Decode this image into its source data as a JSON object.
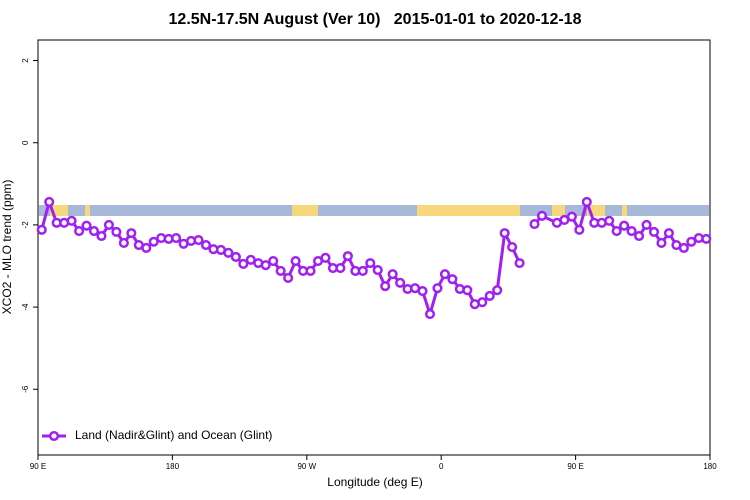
{
  "chart_data": {
    "type": "line",
    "title": "12.5N-17.5N August (Ver 10)   2015-01-01 to 2020-12-18",
    "xlabel": "Longitude (deg E)",
    "ylabel": "XCO2 - MLO trend (ppm)",
    "xlim": [
      90,
      540
    ],
    "xticks": [
      {
        "value": 90,
        "label": "90 E"
      },
      180,
      {
        "value": 270,
        "label": "90 W"
      },
      {
        "value": 360,
        "label": "0"
      },
      {
        "value": 450,
        "label": "90 E"
      },
      {
        "value": 540,
        "label": "180"
      }
    ],
    "ylim": [
      -7.6,
      2.5
    ],
    "yticks": [
      -6,
      -4,
      -2,
      0,
      2
    ],
    "grid": false,
    "legend": "bottomleft",
    "x": [
      92.5,
      97.5,
      102.5,
      107.5,
      112.5,
      117.5,
      122.5,
      127.5,
      132.5,
      137.5,
      142.5,
      147.5,
      152.5,
      157.5,
      162.5,
      167.5,
      172.5,
      177.5,
      182.5,
      187.5,
      192.5,
      197.5,
      202.5,
      207.5,
      212.5,
      217.5,
      222.5,
      227.5,
      232.5,
      237.5,
      242.5,
      247.5,
      252.5,
      257.5,
      262.5,
      267.5,
      272.5,
      277.5,
      282.5,
      287.5,
      292.5,
      297.5,
      302.5,
      307.5,
      312.5,
      317.5,
      322.5,
      327.5,
      332.5,
      337.5,
      342.5,
      347.5,
      352.5,
      357.5,
      362.5,
      367.5,
      372.5,
      377.5,
      382.5,
      387.5,
      392.5,
      397.5,
      402.5,
      407.5,
      412.5,
      417.5,
      422.5,
      427.5,
      437.5,
      442.5,
      447.5,
      452.5,
      457.5,
      462.5,
      467.5,
      472.5,
      477.5,
      482.5,
      487.5,
      492.5,
      497.5,
      502.5,
      507.5,
      512.5,
      517.5,
      522.5,
      527.5,
      532.5,
      537.5
    ],
    "series": [
      {
        "name": "Land (Nadir&Glint) and Ocean (Glint)",
        "color": "#a020f0",
        "values": [
          -2.12,
          -1.44,
          -1.95,
          -1.95,
          -1.9,
          -2.15,
          -2.02,
          -2.15,
          -2.27,
          -2.0,
          -2.17,
          -2.44,
          -2.2,
          -2.49,
          -2.56,
          -2.41,
          -2.32,
          -2.34,
          -2.32,
          -2.46,
          -2.39,
          -2.37,
          -2.49,
          -2.59,
          -2.61,
          -2.68,
          -2.78,
          -2.95,
          -2.85,
          -2.93,
          -2.98,
          -2.88,
          -3.12,
          -3.29,
          -2.88,
          -3.12,
          -3.12,
          -2.88,
          -2.8,
          -3.05,
          -3.05,
          -2.76,
          -3.12,
          -3.12,
          -2.93,
          -3.1,
          -3.49,
          -3.2,
          -3.41,
          -3.56,
          -3.54,
          -3.61,
          -4.17,
          -3.54,
          -3.2,
          -3.32,
          -3.56,
          -3.59,
          -3.93,
          -3.88,
          -3.73,
          -3.59,
          -2.2,
          -2.54,
          -2.93,
          null,
          -1.98,
          -1.78,
          -1.95,
          -1.88,
          -1.8,
          -2.12,
          -1.44,
          -1.95,
          -1.95,
          -1.9,
          -2.15,
          -2.02,
          -2.15,
          -2.27,
          -2.0,
          -2.17,
          -2.44,
          -2.2,
          -2.49,
          -2.56,
          -2.41,
          -2.32,
          -2.34
        ]
      }
    ]
  }
}
